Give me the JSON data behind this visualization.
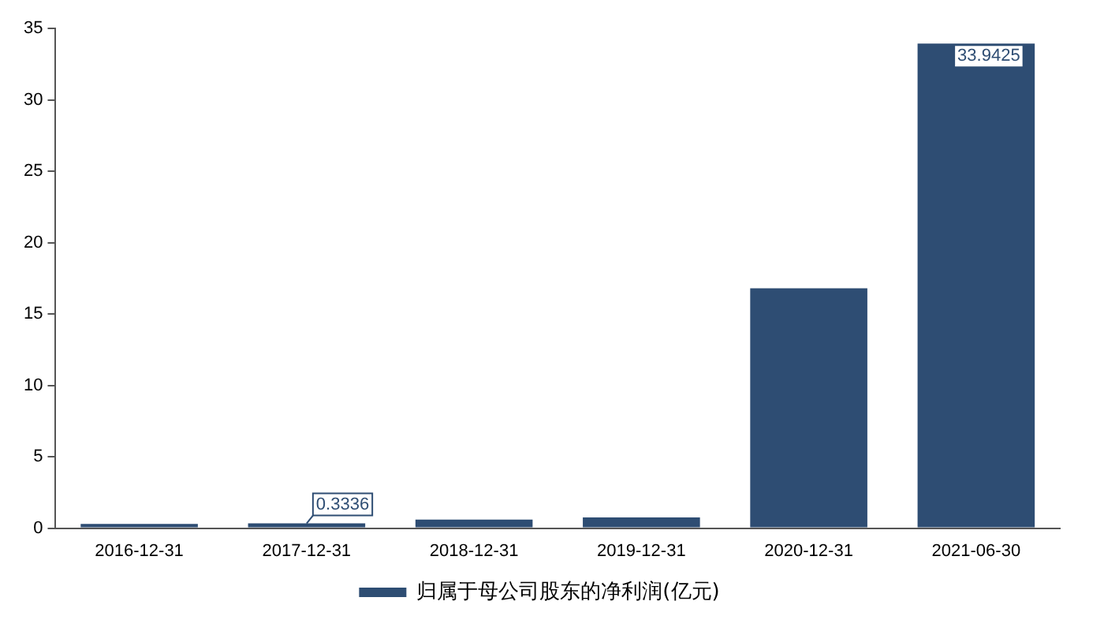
{
  "chart_data": {
    "type": "bar",
    "categories": [
      "2016-12-31",
      "2017-12-31",
      "2018-12-31",
      "2019-12-31",
      "2020-12-31",
      "2021-06-30"
    ],
    "series": [
      {
        "name": "归属于母公司股东的净利润(亿元)",
        "color": "#2e4d73",
        "values": [
          0.3,
          0.3336,
          0.6,
          0.75,
          16.8,
          33.9425
        ],
        "value_labels": [
          null,
          "0.3336",
          null,
          null,
          null,
          "33.9425"
        ]
      }
    ],
    "ylim": [
      0,
      35
    ],
    "yticks": [
      0,
      5,
      10,
      15,
      20,
      25,
      30,
      35
    ],
    "grid": false,
    "legend": "bottom"
  }
}
